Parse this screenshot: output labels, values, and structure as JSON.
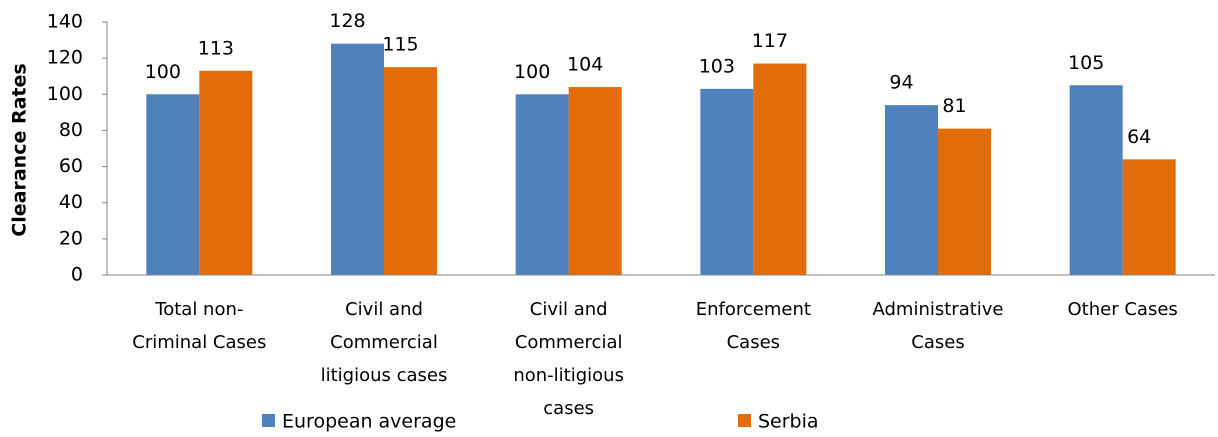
{
  "chart_data": {
    "type": "bar",
    "y_label": "Clearance Rates",
    "categories": [
      "Total non-Criminal Cases",
      "Civil and Commercial litigious cases",
      "Civil and Commercial non-litigious cases",
      "Enforcement Cases",
      "Administrative Cases",
      "Other Cases"
    ],
    "series": [
      {
        "name": "European average",
        "color": "#4f81bd",
        "values": [
          100,
          128,
          100,
          103,
          94,
          105
        ]
      },
      {
        "name": "Serbia",
        "color": "#e36c0a",
        "values": [
          113,
          115,
          104,
          117,
          81,
          64
        ]
      }
    ],
    "ylim": [
      0,
      140
    ],
    "yticks": [
      0,
      20,
      40,
      60,
      80,
      100,
      120,
      140
    ],
    "grid": false,
    "legend": "bottom"
  }
}
